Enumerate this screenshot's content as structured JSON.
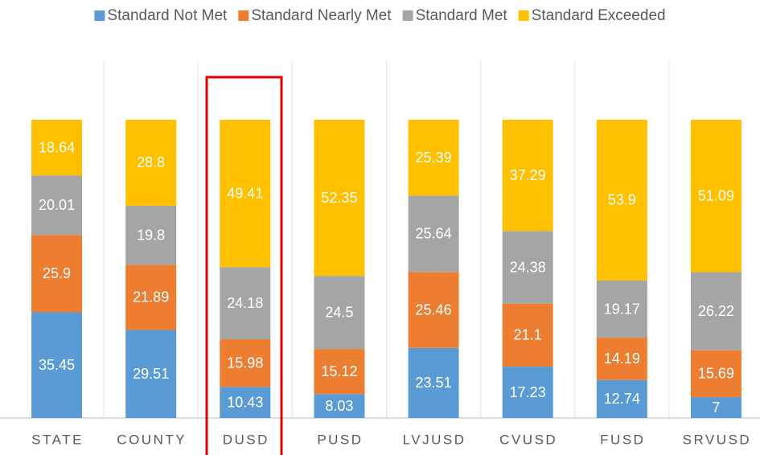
{
  "chart_data": {
    "type": "stacked_bar",
    "categories": [
      "STATE",
      "COUNTY",
      "DUSD",
      "PUSD",
      "LVJUSD",
      "CVUSD",
      "FUSD",
      "SRVUSD"
    ],
    "series": [
      {
        "name": "Standard Not Met",
        "color": "#5b9bd5",
        "values": [
          35.45,
          29.51,
          10.43,
          8.03,
          23.51,
          17.23,
          12.74,
          7
        ]
      },
      {
        "name": "Standard Nearly Met",
        "color": "#ed7d31",
        "values": [
          25.9,
          21.89,
          15.98,
          15.12,
          25.46,
          21.1,
          14.19,
          15.69
        ]
      },
      {
        "name": "Standard Met",
        "color": "#a5a5a5",
        "values": [
          20.01,
          19.8,
          24.18,
          24.5,
          25.64,
          24.38,
          19.17,
          26.22
        ]
      },
      {
        "name": "Standard Exceeded",
        "color": "#ffc000",
        "values": [
          18.64,
          28.8,
          49.41,
          52.35,
          25.39,
          37.29,
          53.9,
          51.09
        ]
      }
    ],
    "ylim": [
      0,
      100
    ],
    "legend": "top"
  }
}
